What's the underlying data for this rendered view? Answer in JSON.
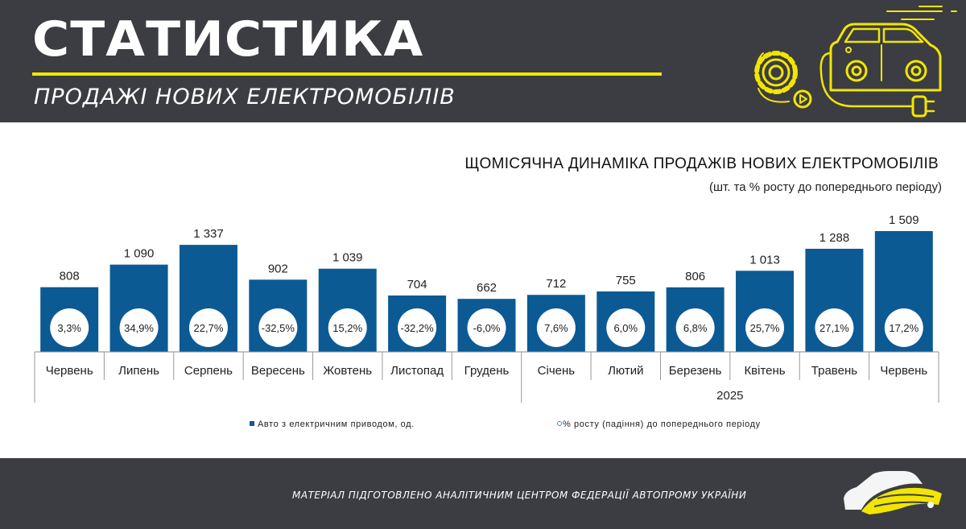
{
  "header": {
    "title": "СТАТИСТИКА",
    "subtitle": "ПРОДАЖІ НОВИХ ЕЛЕКТРОМОБІЛІВ",
    "accent_color": "#f2e600",
    "background_color": "#3b3d42",
    "icon": "ev-car-charging-icon"
  },
  "chart_data": {
    "type": "bar",
    "title": "ЩОМІСЯЧНА ДИНАМІКА ПРОДАЖІВ НОВИХ ЕЛЕКТРОМОБІЛІВ",
    "subtitle": "(шт. та % росту до попереднього періоду)",
    "categories": [
      "Червень",
      "Липень",
      "Серпень",
      "Вересень",
      "Жовтень",
      "Листопад",
      "Грудень",
      "Січень",
      "Лютий",
      "Березень",
      "Квітень",
      "Травень",
      "Червень"
    ],
    "value_labels": [
      "808",
      "1 090",
      "1 337",
      "902",
      "1 039",
      "704",
      "662",
      "712",
      "755",
      "806",
      "1 013",
      "1 288",
      "1 509"
    ],
    "pct_labels": [
      "3,3%",
      "34,9%",
      "22,7%",
      "-32,5%",
      "15,2%",
      "-32,2%",
      "-6,0%",
      "7,6%",
      "6,0%",
      "6,8%",
      "25,7%",
      "27,1%",
      "17,2%"
    ],
    "year_group": {
      "label": "2025",
      "from_index": 7
    },
    "series": [
      {
        "name": "Авто з електричним приводом, од.",
        "values": [
          808,
          1090,
          1337,
          902,
          1039,
          704,
          662,
          712,
          755,
          806,
          1013,
          1288,
          1509
        ],
        "color": "#0b5a94"
      },
      {
        "name": "% росту (падіння) до попереднього періоду",
        "values": [
          3.3,
          34.9,
          22.7,
          -32.5,
          15.2,
          -32.2,
          -6.0,
          7.6,
          6.0,
          6.8,
          25.7,
          27.1,
          17.2
        ]
      }
    ],
    "ylim": [
      0,
      1509
    ],
    "grid": false,
    "legend_position": "bottom"
  },
  "legend": {
    "bars_label": "Авто з електричним приводом, од.",
    "pct_label": "% росту (падіння) до попереднього періоду"
  },
  "footer": {
    "text": "МАТЕРІАЛ ПІДГОТОВЛЕНО АНАЛІТИЧНИМ ЦЕНТРОМ ФЕДЕРАЦІЇ АВТОПРОМУ УКРАЇНИ",
    "logo": "federation-car-logo-icon"
  }
}
